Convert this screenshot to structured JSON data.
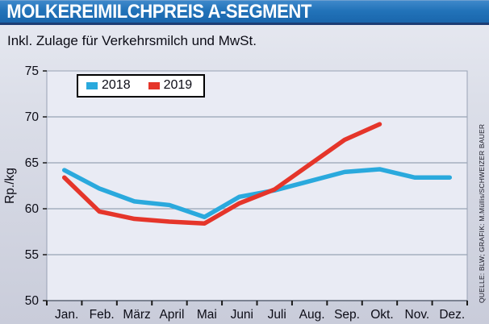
{
  "header": {
    "title": "MOLKEREIMILCHPREIS A-SEGMENT",
    "subtitle": "Inkl. Zulage für Verkehrsmilch und MwSt."
  },
  "source_note": "QUELLE: BLW; GRAFIK: M.Müllis/SCHWEIZER BAUER",
  "colors": {
    "banner_blue": "#2273b9",
    "banner_edge": "#1c3d74",
    "plot_bg": "#e9ebf4",
    "grid": "#99a2b5",
    "axis": "#5c6474",
    "tick": "#1a1a1a",
    "text": "#0c0c16",
    "line_2018": "#2aa9dd",
    "line_2019": "#e5352a"
  },
  "chart_data": {
    "type": "line",
    "title": "MOLKEREIMILCHPREIS A-SEGMENT",
    "subtitle": "Inkl. Zulage für Verkehrsmilch und MwSt.",
    "xlabel": "",
    "ylabel": "Rp./kg",
    "ylim": [
      50,
      75
    ],
    "ytick_step": 5,
    "grid": true,
    "legend_position": "top-left",
    "categories": [
      "Jan.",
      "Feb.",
      "März",
      "April",
      "Mai",
      "Juni",
      "Juli",
      "Aug.",
      "Sep.",
      "Okt.",
      "Nov.",
      "Dez."
    ],
    "series": [
      {
        "name": "2018",
        "color": "#2aa9dd",
        "values": [
          64.2,
          62.2,
          60.8,
          60.4,
          59.1,
          61.3,
          62.0,
          63.0,
          64.0,
          64.3,
          63.4,
          63.4
        ]
      },
      {
        "name": "2019",
        "color": "#e5352a",
        "values": [
          63.4,
          59.7,
          58.9,
          58.6,
          58.4,
          60.6,
          62.1,
          64.8,
          67.5,
          69.2,
          null,
          null
        ]
      }
    ]
  }
}
